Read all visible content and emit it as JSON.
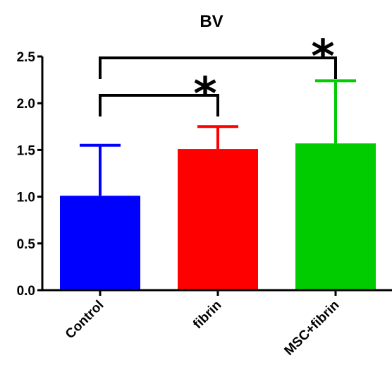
{
  "chart_data": {
    "type": "bar",
    "title": "BV",
    "xlabel": "",
    "ylabel": "",
    "ylim": [
      0,
      2.5
    ],
    "yticks": [
      "0.0",
      "0.5",
      "1.0",
      "1.5",
      "2.0",
      "2.5"
    ],
    "grid": false,
    "legend": "none",
    "categories": [
      "Control",
      "fibrin",
      "MSC+fibrin"
    ],
    "values": [
      1.01,
      1.51,
      1.57
    ],
    "error_upper": [
      1.55,
      1.75,
      2.24
    ],
    "colors": [
      "#0000ff",
      "#ff0000",
      "#00cc00"
    ],
    "annotations": [
      {
        "label": "*",
        "from": "Control",
        "to": "fibrin",
        "bracket_y": 2.1
      },
      {
        "label": "*",
        "from": "Control",
        "to": "MSC+fibrin",
        "bracket_y": 2.5
      }
    ]
  }
}
